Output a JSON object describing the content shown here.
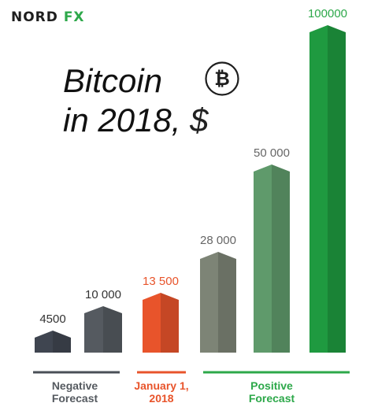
{
  "logo": {
    "left": "NORD ",
    "accent": "FX"
  },
  "title": {
    "line1": "Bitcoin",
    "line2": "in 2018,",
    "currency": "$"
  },
  "icons": {
    "bitcoin": "bitcoin-circle-icon"
  },
  "colors": {
    "negative": "#4a4f57",
    "current": "#e8542b",
    "positive": "#2da84a",
    "text": "#333333"
  },
  "chart_data": {
    "type": "bar",
    "title": "Bitcoin in 2018, $",
    "categories": [
      "",
      "",
      "",
      "",
      "",
      ""
    ],
    "values": [
      4500,
      10000,
      13500,
      28000,
      50000,
      100000
    ],
    "value_labels": [
      "4500",
      "10 000",
      "13 500",
      "28 000",
      "50 000",
      "100000"
    ],
    "groups": [
      {
        "label": "Negative Forecast",
        "lines": [
          "Negative",
          "Forecast"
        ],
        "bars": [
          0,
          1
        ],
        "color": "#4a4f57"
      },
      {
        "label": "January 1, 2018",
        "lines": [
          "January 1,",
          "2018"
        ],
        "bars": [
          2
        ],
        "color": "#e8542b"
      },
      {
        "label": "Positive Forecast",
        "lines": [
          "Positive",
          "Forecast"
        ],
        "bars": [
          3,
          4,
          5
        ],
        "color": "#2da84a"
      }
    ],
    "bar_colors": [
      "#3f4550",
      "#555a60",
      "#e8542b",
      "#7d8476",
      "#5f9a6b",
      "#1f9a40"
    ],
    "label_colors": [
      "#333333",
      "#333333",
      "#e8542b",
      "#666666",
      "#666666",
      "#2da84a"
    ],
    "scale": "nonlinear-illustrative",
    "grid": false
  }
}
